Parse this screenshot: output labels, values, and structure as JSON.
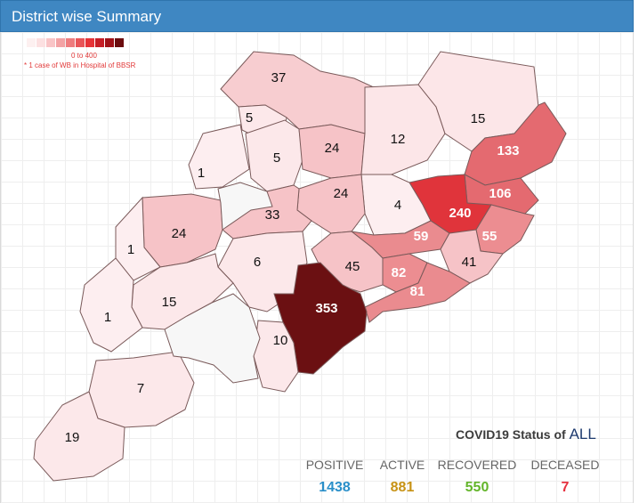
{
  "header": {
    "title": "District wise Summary"
  },
  "legend": {
    "colors": [
      "#fdf0f0",
      "#fce0e1",
      "#f9c4c6",
      "#f3a2a4",
      "#ee7c7e",
      "#e85558",
      "#e63337",
      "#c61e26",
      "#a01218",
      "#6b0c0e"
    ],
    "range_label": "0 to 400",
    "note": "* 1 case of WB in Hospital of BBSR"
  },
  "districts": [
    {
      "value": "37",
      "fill": "#f7cdd0",
      "light": false
    },
    {
      "value": "5",
      "fill": "#fce8ea",
      "light": false
    },
    {
      "value": "5",
      "fill": "#fce8ea",
      "light": false
    },
    {
      "value": "1",
      "fill": "#fdeef0",
      "light": false
    },
    {
      "value": "24",
      "fill": "#f6c3c7",
      "light": false
    },
    {
      "value": "12",
      "fill": "#fce6e8",
      "light": false
    },
    {
      "value": "15",
      "fill": "#fce6e8",
      "light": false
    },
    {
      "value": "133",
      "fill": "#e46a70",
      "light": true
    },
    {
      "value": "106",
      "fill": "#e46a70",
      "light": true
    },
    {
      "value": "240",
      "fill": "#e0343b",
      "light": true
    },
    {
      "value": "4",
      "fill": "#fdeef0",
      "light": false
    },
    {
      "value": "24",
      "fill": "#f6c3c7",
      "light": false
    },
    {
      "value": "33",
      "fill": "#f6c3c7",
      "light": false
    },
    {
      "value": "24",
      "fill": "#f6c3c7",
      "light": false
    },
    {
      "value": "1",
      "fill": "#fdeef0",
      "light": false
    },
    {
      "value": "6",
      "fill": "#fce8ea",
      "light": false
    },
    {
      "value": "59",
      "fill": "#ea8b8f",
      "light": true
    },
    {
      "value": "55",
      "fill": "#ec8d91",
      "light": true
    },
    {
      "value": "41",
      "fill": "#f6c3c7",
      "light": false
    },
    {
      "value": "45",
      "fill": "#f6c3c7",
      "light": false
    },
    {
      "value": "82",
      "fill": "#ec8d91",
      "light": true
    },
    {
      "value": "81",
      "fill": "#ea8b8f",
      "light": true
    },
    {
      "value": "353",
      "fill": "#6b1012",
      "light": true
    },
    {
      "value": "15",
      "fill": "#fce8ea",
      "light": false
    },
    {
      "value": "1",
      "fill": "#fdeef0",
      "light": false
    },
    {
      "value": "10",
      "fill": "#fce8ea",
      "light": false
    },
    {
      "value": "7",
      "fill": "#fce8ea",
      "light": false
    },
    {
      "value": "19",
      "fill": "#fce8ea",
      "light": false
    },
    {
      "value": "",
      "fill": "#f7f7f7",
      "light": false
    },
    {
      "value": "",
      "fill": "#f7f7f7",
      "light": false
    }
  ],
  "status": {
    "title": "COVID19 Status of",
    "scope": "ALL",
    "positive_label": "POSITIVE",
    "positive_value": "1438",
    "positive_color": "#2a8fc9",
    "active_label": "ACTIVE",
    "active_value": "881",
    "active_color": "#c79214",
    "recovered_label": "RECOVERED",
    "recovered_value": "550",
    "recovered_color": "#63b52a",
    "deceased_label": "DECEASED",
    "deceased_value": "7",
    "deceased_color": "#e63240"
  }
}
